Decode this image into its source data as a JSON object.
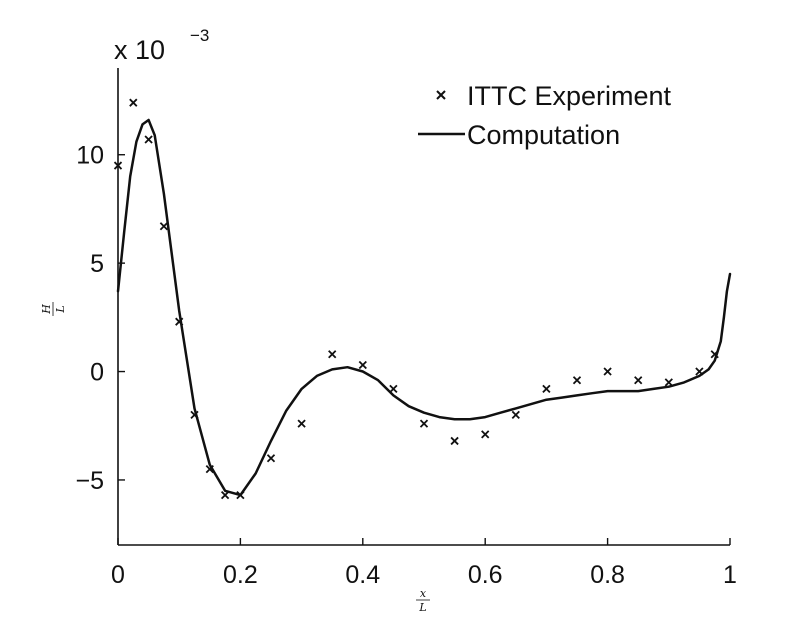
{
  "chart_data": {
    "type": "line",
    "title": "",
    "xlabel": {
      "numerator": "x",
      "denominator": "L"
    },
    "ylabel": {
      "numerator": "H",
      "denominator": "L"
    },
    "xlim": [
      0,
      1
    ],
    "ylim": [
      -0.008,
      0.014
    ],
    "y_exponent": {
      "base": "x 10",
      "power": "−3"
    },
    "x_ticks": [
      {
        "value": 0,
        "label": "0"
      },
      {
        "value": 0.2,
        "label": "0.2"
      },
      {
        "value": 0.4,
        "label": "0.4"
      },
      {
        "value": 0.6,
        "label": "0.6"
      },
      {
        "value": 0.8,
        "label": "0.8"
      },
      {
        "value": 1,
        "label": "1"
      }
    ],
    "y_ticks": [
      {
        "value": -0.005,
        "label": "−5"
      },
      {
        "value": 0,
        "label": "0"
      },
      {
        "value": 0.005,
        "label": "5"
      },
      {
        "value": 0.01,
        "label": "10"
      }
    ],
    "grid": false,
    "legend_position": "top-right",
    "series": [
      {
        "name": "ITTC Experiment",
        "style": "markers",
        "marker": "x",
        "color": "#111111",
        "x": [
          0,
          0.025,
          0.05,
          0.075,
          0.1,
          0.125,
          0.15,
          0.175,
          0.2,
          0.25,
          0.3,
          0.35,
          0.4,
          0.45,
          0.5,
          0.55,
          0.6,
          0.65,
          0.7,
          0.75,
          0.8,
          0.85,
          0.9,
          0.95,
          0.975
        ],
        "y": [
          0.0095,
          0.0124,
          0.0107,
          0.0067,
          0.0023,
          -0.002,
          -0.0045,
          -0.0057,
          -0.0057,
          -0.004,
          -0.0024,
          0.0008,
          0.0003,
          -0.0008,
          -0.0024,
          -0.0032,
          -0.0029,
          -0.002,
          -0.0008,
          -0.0004,
          0.0,
          -0.0004,
          -0.0005,
          0.0,
          0.0008
        ]
      },
      {
        "name": "Computation",
        "style": "line",
        "color": "#111111",
        "x": [
          0,
          0.01,
          0.02,
          0.03,
          0.04,
          0.05,
          0.06,
          0.075,
          0.1,
          0.125,
          0.15,
          0.175,
          0.2,
          0.225,
          0.25,
          0.275,
          0.3,
          0.325,
          0.35,
          0.375,
          0.4,
          0.425,
          0.45,
          0.475,
          0.5,
          0.525,
          0.55,
          0.575,
          0.6,
          0.625,
          0.65,
          0.675,
          0.7,
          0.725,
          0.75,
          0.775,
          0.8,
          0.825,
          0.85,
          0.875,
          0.9,
          0.925,
          0.95,
          0.965,
          0.975,
          0.985,
          0.99,
          0.995,
          1.0
        ],
        "y": [
          0.0037,
          0.0064,
          0.009,
          0.0106,
          0.0114,
          0.0116,
          0.0109,
          0.0082,
          0.0028,
          -0.0017,
          -0.0043,
          -0.0055,
          -0.0057,
          -0.0047,
          -0.0032,
          -0.0018,
          -0.0008,
          -0.0002,
          0.0001,
          0.0002,
          0.0,
          -0.0004,
          -0.0011,
          -0.0016,
          -0.0019,
          -0.0021,
          -0.0022,
          -0.0022,
          -0.0021,
          -0.0019,
          -0.0017,
          -0.0015,
          -0.0013,
          -0.0012,
          -0.0011,
          -0.001,
          -0.0009,
          -0.0009,
          -0.0009,
          -0.0008,
          -0.0007,
          -0.0005,
          -0.0002,
          0.0001,
          0.0005,
          0.0014,
          0.0025,
          0.0037,
          0.0045
        ]
      }
    ]
  }
}
